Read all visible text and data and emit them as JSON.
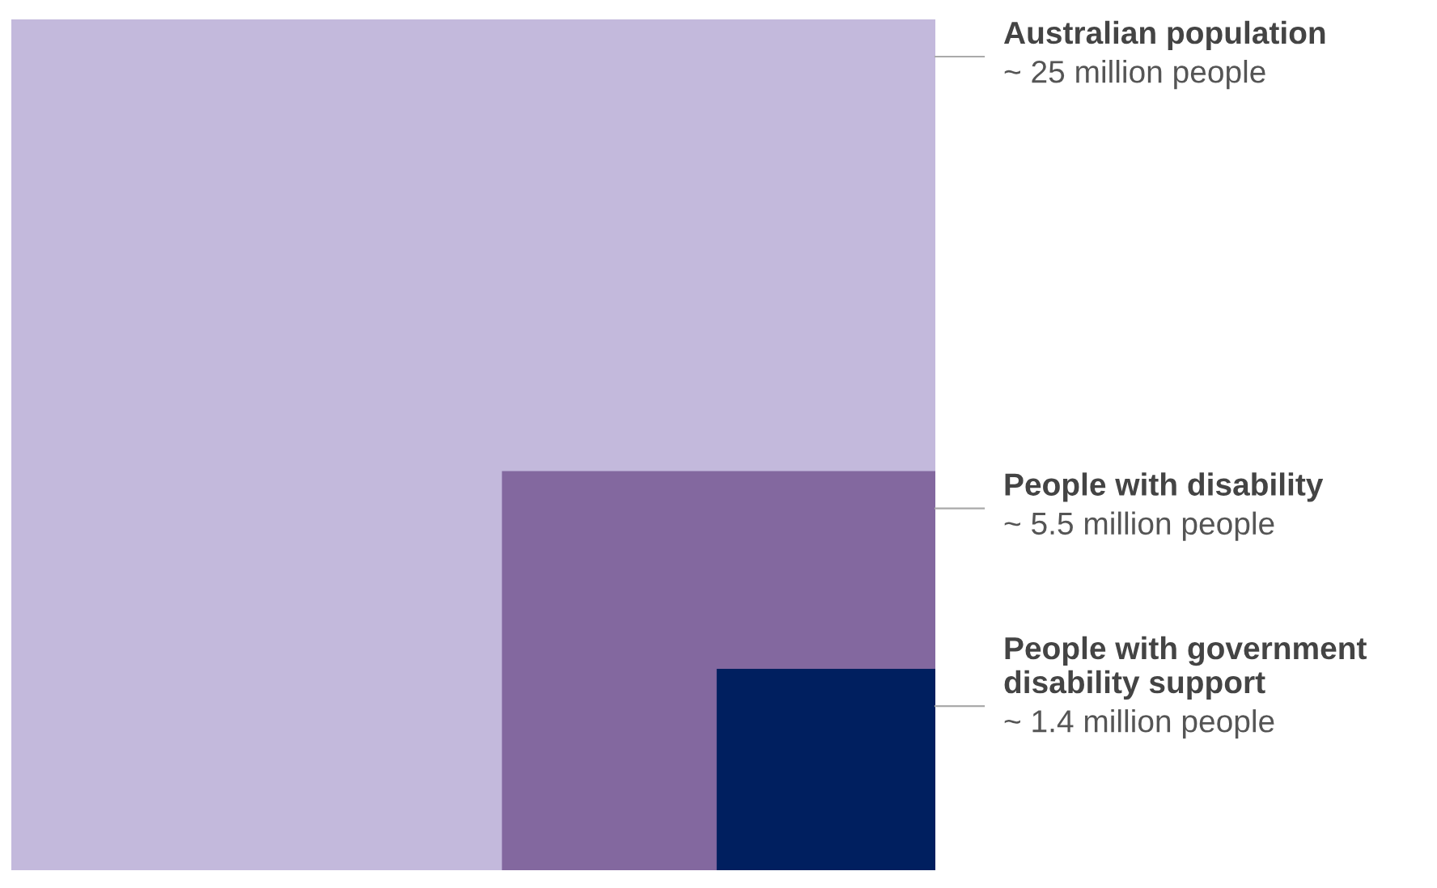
{
  "chart_data": {
    "type": "other",
    "categories": [
      "Australian population",
      "People with disability",
      "People with government\ndisability support"
    ],
    "values": [
      25,
      5.5,
      1.4
    ],
    "value_labels": [
      "~ 25 million people",
      "~ 5.5 million people",
      "~ 1.4 million people"
    ],
    "colors": [
      "#c3b9dc",
      "#83689f",
      "#001f5f"
    ]
  }
}
